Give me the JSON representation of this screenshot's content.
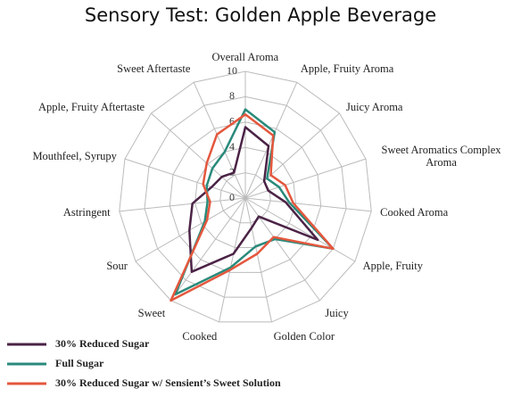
{
  "chart_data": {
    "type": "radar",
    "title": "Sensory Test: Golden Apple Beverage",
    "categories": [
      "Overall Aroma",
      "Apple, Fruity Aroma",
      "Juicy Aroma",
      "Sweet Aromatics Complex Aroma",
      "Cooked Aroma",
      "Apple, Fruity",
      "Juicy",
      "Golden Color",
      "Cooked",
      "Sweet",
      "Sour",
      "Astringent",
      "Mouthfeel, Syrupy",
      "Apple, Fruity Aftertaste",
      "Sweet Aftertaste"
    ],
    "series": [
      {
        "name": "30% Reduced Sugar",
        "color": "#4b2346",
        "values": [
          5.6,
          4.5,
          2.0,
          1.9,
          3.2,
          6.6,
          1.8,
          2.4,
          4.5,
          7.2,
          5.1,
          4.2,
          2.8,
          2.5,
          2.2
        ]
      },
      {
        "name": "Full Sugar",
        "color": "#2a8a7b",
        "values": [
          7.0,
          5.7,
          2.3,
          2.8,
          3.5,
          8.0,
          4.0,
          3.9,
          5.6,
          9.4,
          3.7,
          3.0,
          3.2,
          3.5,
          4.0
        ]
      },
      {
        "name": "30% Reduced Sugar w/ Sensient’s Sweet Solution",
        "color": "#e4573d",
        "values": [
          6.6,
          5.4,
          2.7,
          3.3,
          3.8,
          8.0,
          3.8,
          4.5,
          5.8,
          10.0,
          3.5,
          2.8,
          3.5,
          4.1,
          5.5
        ]
      }
    ],
    "ylim": [
      0,
      10
    ],
    "yticks": [
      0,
      2,
      4,
      6,
      8,
      10
    ],
    "grid": true
  }
}
